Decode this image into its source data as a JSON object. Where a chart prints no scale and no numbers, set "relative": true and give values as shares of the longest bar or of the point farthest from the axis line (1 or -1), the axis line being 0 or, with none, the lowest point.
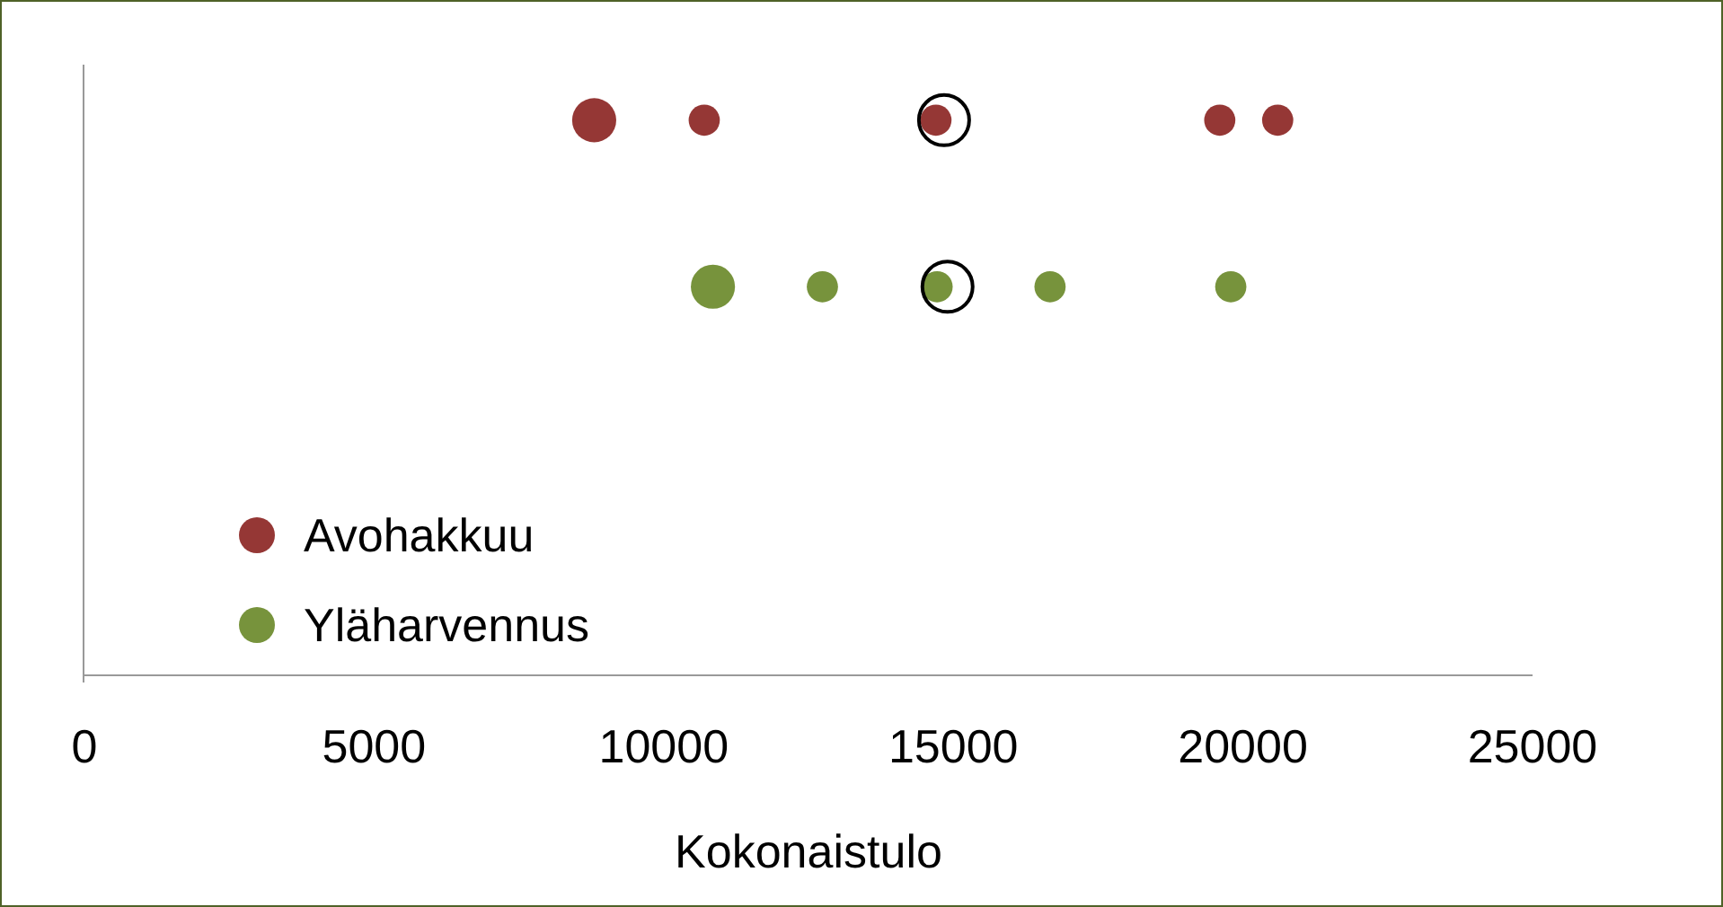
{
  "chart_data": {
    "type": "bubble",
    "xlabel": "Kokonaistulo",
    "relative": true,
    "xlim": [
      0,
      25000
    ],
    "xticks": [
      0,
      5000,
      10000,
      15000,
      20000,
      25000
    ],
    "legend": "bottom left",
    "marker": "circle",
    "grid": false,
    "series": [
      {
        "name": "Avohakkuu",
        "color": "#953735",
        "x": [
          8800,
          10700,
          14700,
          19600,
          20600
        ],
        "values": [
          1,
          1,
          1,
          1,
          1
        ],
        "sizes": [
          1,
          0.5,
          0.5,
          0.5,
          0.5
        ]
      },
      {
        "name": "Yläharvennus",
        "color": "#77933c",
        "x": [
          10850,
          12740,
          14720,
          16670,
          19790
        ],
        "values": [
          0.7,
          0.7,
          0.7,
          0.7,
          0.7
        ],
        "sizes": [
          1,
          0.5,
          0.5,
          0.5,
          0.5
        ]
      },
      {
        "type": "scatter",
        "color": "#000000",
        "x": [
          14840,
          14900
        ],
        "values": [
          1,
          0.7
        ]
      }
    ]
  }
}
